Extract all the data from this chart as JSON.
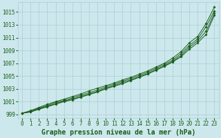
{
  "title": "Graphe pression niveau de la mer (hPa)",
  "xlabel": "Graphe pression niveau de la mer (hPa)",
  "x": [
    0,
    1,
    2,
    3,
    4,
    5,
    6,
    7,
    8,
    9,
    10,
    11,
    12,
    13,
    14,
    15,
    16,
    17,
    18,
    19,
    20,
    21,
    22,
    23
  ],
  "lines": [
    [
      999.2,
      999.6,
      1000.1,
      1000.6,
      1001.0,
      1001.4,
      1001.8,
      1002.2,
      1002.7,
      1003.1,
      1003.5,
      1003.9,
      1004.4,
      1004.8,
      1005.3,
      1005.8,
      1006.4,
      1007.0,
      1007.8,
      1008.8,
      1010.2,
      1011.2,
      1013.2,
      1015.8
    ],
    [
      999.2,
      999.5,
      1000.0,
      1000.4,
      1000.9,
      1001.2,
      1001.6,
      1002.0,
      1002.4,
      1002.8,
      1003.3,
      1003.7,
      1004.2,
      1004.6,
      1005.1,
      1005.6,
      1006.2,
      1006.8,
      1007.5,
      1008.5,
      1009.8,
      1010.8,
      1012.7,
      1015.2
    ],
    [
      999.2,
      999.4,
      999.9,
      1000.3,
      1000.7,
      1001.1,
      1001.4,
      1001.8,
      1002.2,
      1002.6,
      1003.1,
      1003.5,
      1004.0,
      1004.4,
      1004.9,
      1005.4,
      1006.0,
      1006.6,
      1007.3,
      1008.2,
      1009.5,
      1010.5,
      1012.0,
      1014.8
    ],
    [
      999.2,
      999.4,
      999.8,
      1000.2,
      1000.6,
      1001.0,
      1001.3,
      1001.7,
      1002.1,
      1002.5,
      1003.0,
      1003.4,
      1003.8,
      1004.3,
      1004.8,
      1005.3,
      1005.9,
      1006.5,
      1007.2,
      1008.0,
      1009.2,
      1010.2,
      1011.5,
      1014.5
    ]
  ],
  "line_color": "#1a5c1a",
  "marker": "D",
  "markersize": 1.8,
  "bg_color": "#cce8ec",
  "grid_color": "#aaccd4",
  "text_color": "#1a5c1a",
  "ylim": [
    998.5,
    1016.5
  ],
  "yticks": [
    999,
    1001,
    1003,
    1005,
    1007,
    1009,
    1011,
    1013,
    1015
  ],
  "xticks": [
    0,
    1,
    2,
    3,
    4,
    5,
    6,
    7,
    8,
    9,
    10,
    11,
    12,
    13,
    14,
    15,
    16,
    17,
    18,
    19,
    20,
    21,
    22,
    23
  ],
  "tick_fontsize": 5.5,
  "xlabel_fontsize": 7.0
}
